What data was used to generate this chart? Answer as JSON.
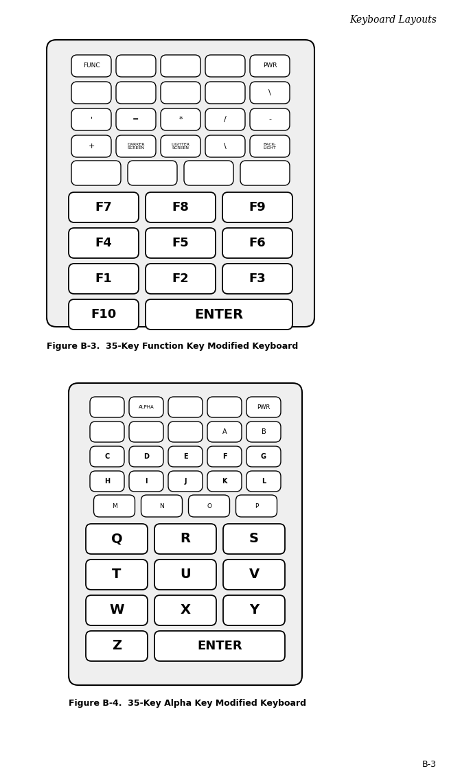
{
  "page_title": "Keyboard Layouts",
  "fig1_caption": "Figure B-3.  35-Key Function Key Modified Keyboard",
  "fig2_caption": "Figure B-4.  35-Key Alpha Key Modified Keyboard",
  "page_number": "B-3",
  "bg_color": "#ffffff",
  "kbd_bg": "#efefef",
  "key_fill": "#ffffff",
  "key_border": "#000000",
  "kbd_border": "#000000"
}
